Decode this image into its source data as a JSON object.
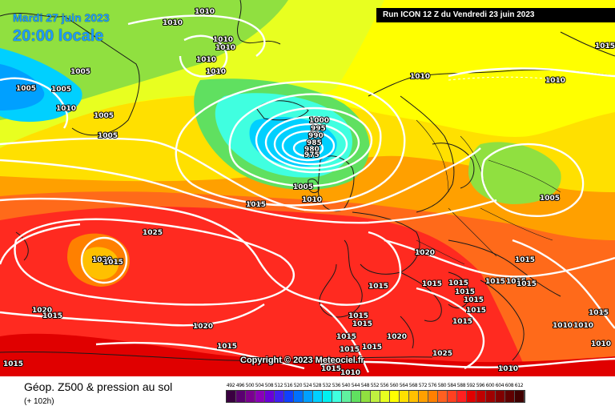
{
  "header": {
    "date": "Mardi 27 juin 2023",
    "time": "20:00 locale",
    "run": "Run ICON 12 Z du Vendredi 23 juin 2023"
  },
  "copyright": "Copyright © 2023 Meteociel.fr",
  "footer": {
    "title": "Géop. Z500 & pression au sol",
    "lead": "(+ 102h)"
  },
  "legend": {
    "values": [
      "492",
      "496",
      "500",
      "504",
      "508",
      "512",
      "516",
      "520",
      "524",
      "528",
      "532",
      "536",
      "540",
      "544",
      "548",
      "552",
      "556",
      "560",
      "564",
      "568",
      "572",
      "576",
      "580",
      "584",
      "588",
      "592",
      "596",
      "600",
      "604",
      "608",
      "612"
    ],
    "colors": [
      "#3a0040",
      "#5a0070",
      "#7a0090",
      "#8a00b8",
      "#6a00d8",
      "#4020f0",
      "#1040ff",
      "#0070ff",
      "#00a0ff",
      "#00d0ff",
      "#00f0f0",
      "#40ffe0",
      "#60f0a0",
      "#60e060",
      "#90e040",
      "#c0f040",
      "#e8ff20",
      "#ffff00",
      "#ffe000",
      "#ffc000",
      "#ffa000",
      "#ff8000",
      "#ff6020",
      "#ff4020",
      "#ff2020",
      "#e00000",
      "#c00000",
      "#a00000",
      "#800000",
      "#600000",
      "#400000"
    ]
  },
  "isobar_labels": [
    "1010",
    "1005",
    "1010",
    "1010",
    "1010",
    "1010",
    "1005",
    "1005",
    "1010",
    "1005",
    "1005",
    "1010",
    "1010",
    "1015",
    "1000",
    "995",
    "990",
    "985",
    "980",
    "975",
    "1005",
    "1010",
    "1015",
    "1005",
    "1015",
    "1025",
    "1020",
    "1015",
    "1020",
    "1015",
    "1015",
    "1015",
    "1015",
    "1015",
    "1015",
    "1015",
    "1015",
    "1015",
    "1015",
    "1015",
    "1015",
    "1015",
    "1015",
    "1015",
    "1020",
    "1025",
    "1020",
    "1015",
    "1020",
    "1015",
    "1015",
    "1015",
    "1010",
    "1010",
    "1010",
    "1010",
    "1010",
    "1010",
    "1015"
  ]
}
